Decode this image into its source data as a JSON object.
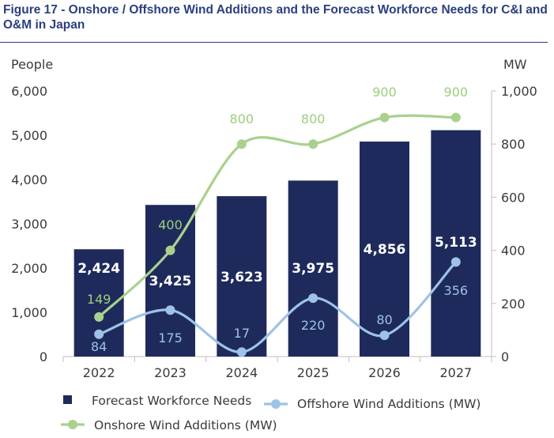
{
  "title": "Figure 17 - Onshore / Offshore Wind Additions and the Forecast Workforce Needs for C&I and O&M in Japan",
  "colors": {
    "title": "#2a3f7f",
    "bars": "#1f2a5c",
    "onshore": "#a9d18e",
    "offshore": "#9dc3e6",
    "bar_labels": "#ffffff"
  },
  "chart_data": {
    "type": "bar",
    "categories": [
      "2022",
      "2023",
      "2024",
      "2025",
      "2026",
      "2027"
    ],
    "y_left": {
      "label": "People",
      "ticks": [
        "0",
        "1,000",
        "2,000",
        "3,000",
        "4,000",
        "5,000",
        "6,000"
      ],
      "range": [
        0,
        6000
      ]
    },
    "y_right": {
      "label": "MW",
      "ticks": [
        "0",
        "200",
        "400",
        "600",
        "800",
        "1,000"
      ],
      "range": [
        0,
        1000
      ]
    },
    "grid": false,
    "legend_position": "bottom",
    "series": [
      {
        "name": "Forecast Workforce Needs",
        "type": "bar",
        "axis": "left",
        "values": [
          2424,
          3425,
          3623,
          3975,
          4856,
          5113
        ],
        "labels": [
          "2,424",
          "3,425",
          "3,623",
          "3,975",
          "4,856",
          "5,113"
        ]
      },
      {
        "name": "Offshore Wind Additions (MW)",
        "type": "line",
        "axis": "right",
        "smooth": true,
        "values": [
          84,
          175,
          17,
          220,
          80,
          356
        ],
        "labels": [
          "84",
          "175",
          "17",
          "220",
          "80",
          "356"
        ]
      },
      {
        "name": "Onshore Wind Additions (MW)",
        "type": "line",
        "axis": "right",
        "smooth": true,
        "values": [
          149,
          400,
          800,
          800,
          900,
          900
        ],
        "labels": [
          "149",
          "400",
          "800",
          "800",
          "900",
          "900"
        ]
      }
    ]
  }
}
